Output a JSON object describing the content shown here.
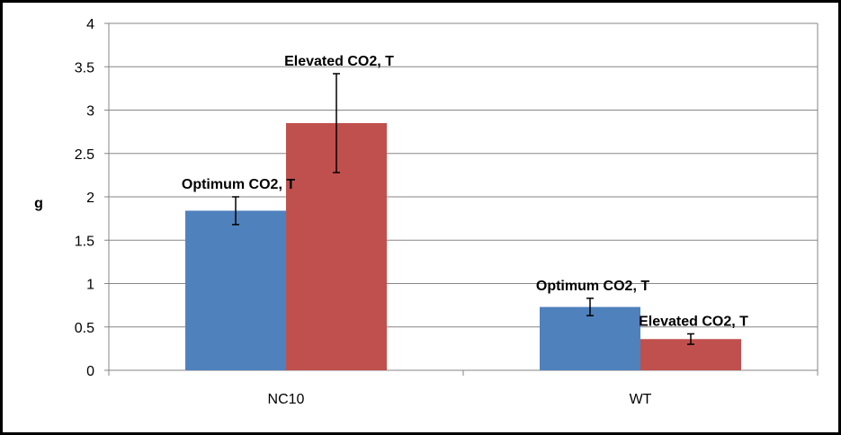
{
  "chart_data": {
    "type": "bar",
    "title": "",
    "xlabel": "",
    "ylabel": "g",
    "ylim": [
      0,
      4
    ],
    "yticks": [
      0,
      0.5,
      1,
      1.5,
      2,
      2.5,
      3,
      3.5,
      4
    ],
    "ytick_labels": [
      "0",
      "0.5",
      "1",
      "1.5",
      "2",
      "2.5",
      "3",
      "3.5",
      "4"
    ],
    "grid": true,
    "legend": "none",
    "categories": [
      "NC10",
      "WT"
    ],
    "series": [
      {
        "color": "#4F81BD",
        "values": [
          1.84,
          0.73
        ],
        "errors": [
          0.16,
          0.1
        ],
        "labels": [
          "Optimum CO2, T",
          "Optimum CO2, T"
        ]
      },
      {
        "color": "#C0504D",
        "values": [
          2.85,
          0.36
        ],
        "errors": [
          0.57,
          0.06
        ],
        "labels": [
          "Elevated CO2, T",
          "Elevated CO2, T"
        ]
      }
    ]
  }
}
